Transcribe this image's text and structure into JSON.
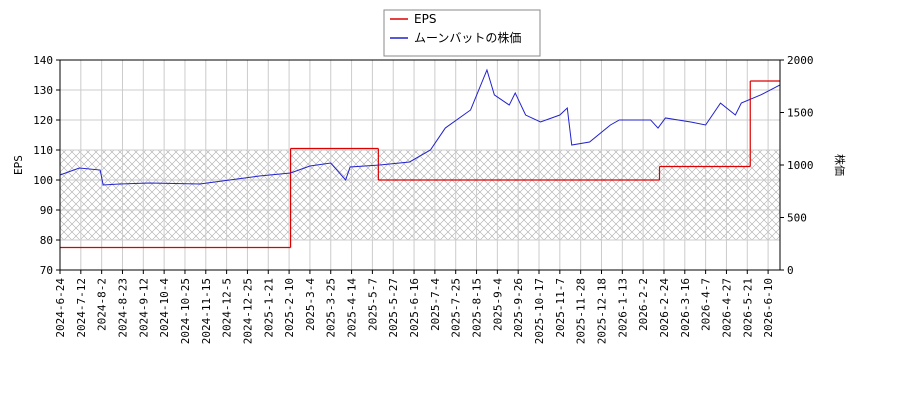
{
  "chart_data": {
    "type": "line",
    "xlim": [
      0,
      484
    ],
    "xticks": [
      {
        "value": 0,
        "label": "2024-6-24"
      },
      {
        "value": 14,
        "label": "2024-7-12"
      },
      {
        "value": 28,
        "label": "2024-8-2"
      },
      {
        "value": 42,
        "label": "2024-8-23"
      },
      {
        "value": 56,
        "label": "2024-9-12"
      },
      {
        "value": 70,
        "label": "2024-10-4"
      },
      {
        "value": 84,
        "label": "2024-10-25"
      },
      {
        "value": 98,
        "label": "2024-11-15"
      },
      {
        "value": 112,
        "label": "2024-12-5"
      },
      {
        "value": 126,
        "label": "2024-12-25"
      },
      {
        "value": 140,
        "label": "2025-1-21"
      },
      {
        "value": 154,
        "label": "2025-2-10"
      },
      {
        "value": 168,
        "label": "2025-3-4"
      },
      {
        "value": 182,
        "label": "2025-3-25"
      },
      {
        "value": 196,
        "label": "2025-4-14"
      },
      {
        "value": 210,
        "label": "2025-5-7"
      },
      {
        "value": 224,
        "label": "2025-5-27"
      },
      {
        "value": 238,
        "label": "2025-6-16"
      },
      {
        "value": 252,
        "label": "2025-7-4"
      },
      {
        "value": 266,
        "label": "2025-7-25"
      },
      {
        "value": 280,
        "label": "2025-8-15"
      },
      {
        "value": 294,
        "label": "2025-9-4"
      },
      {
        "value": 308,
        "label": "2025-9-26"
      },
      {
        "value": 322,
        "label": "2025-10-17"
      },
      {
        "value": 336,
        "label": "2025-11-7"
      },
      {
        "value": 350,
        "label": "2025-11-28"
      },
      {
        "value": 364,
        "label": "2025-12-18"
      },
      {
        "value": 378,
        "label": "2026-1-13"
      },
      {
        "value": 392,
        "label": "2026-2-2"
      },
      {
        "value": 406,
        "label": "2026-2-24"
      },
      {
        "value": 420,
        "label": "2026-3-16"
      },
      {
        "value": 434,
        "label": "2026-4-7"
      },
      {
        "value": 448,
        "label": "2026-4-27"
      },
      {
        "value": 462,
        "label": "2026-5-21"
      },
      {
        "value": 476,
        "label": "2026-6-10"
      }
    ],
    "ylabel": "EPS",
    "ylim": [
      70,
      140
    ],
    "yticks": [
      70,
      80,
      90,
      100,
      110,
      120,
      130,
      140
    ],
    "y2label": "株価",
    "y2lim": [
      0,
      2000
    ],
    "y2ticks": [
      0,
      500,
      1000,
      1500,
      2000
    ],
    "shaded_range": [
      80,
      110
    ],
    "grid": true,
    "legend": "top",
    "series": [
      {
        "name": "EPS",
        "color": "#dd0000",
        "step": true,
        "x": [
          0,
          155,
          214,
          403,
          464
        ],
        "values": [
          77.5,
          110.5,
          100,
          104.5,
          133
        ]
      },
      {
        "name": "ムーンバットの株価",
        "color": "#2222cc",
        "axis": "y2",
        "x": [
          0,
          13,
          27,
          29,
          40,
          60,
          94,
          114,
          134,
          155,
          168,
          182,
          192,
          195,
          215,
          235,
          249,
          259,
          276,
          287,
          292,
          302,
          306,
          313,
          323,
          336,
          341,
          344,
          356,
          370,
          376,
          397,
          402,
          407,
          424,
          434,
          444,
          454,
          458,
          471,
          484
        ],
        "values": [
          905,
          971,
          952,
          810,
          819,
          829,
          819,
          857,
          895,
          924,
          990,
          1019,
          857,
          981,
          1000,
          1029,
          1143,
          1352,
          1524,
          1905,
          1667,
          1571,
          1686,
          1476,
          1410,
          1476,
          1543,
          1190,
          1219,
          1381,
          1429,
          1429,
          1352,
          1448,
          1410,
          1381,
          1590,
          1476,
          1590,
          1667,
          1762
        ]
      }
    ]
  }
}
